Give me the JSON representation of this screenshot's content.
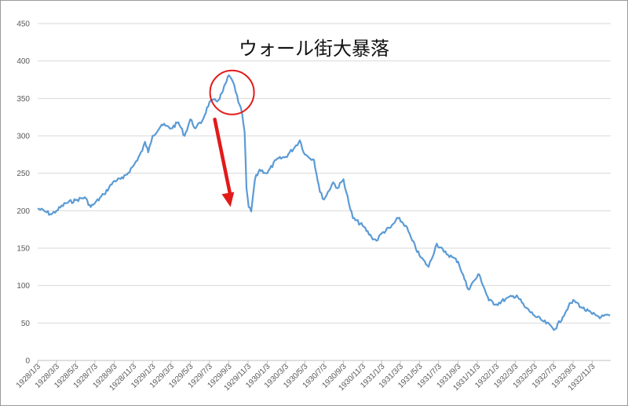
{
  "chart_data": {
    "type": "line",
    "title": "ウォール街大暴落",
    "xlabel": "",
    "ylabel": "",
    "ylim": [
      0,
      450
    ],
    "yticks": [
      0,
      50,
      100,
      150,
      200,
      250,
      300,
      350,
      400,
      450
    ],
    "xticks": [
      "1928/1/3",
      "1928/3/3",
      "1928/5/3",
      "1928/7/3",
      "1928/9/3",
      "1928/11/3",
      "1929/1/3",
      "1929/3/3",
      "1929/5/3",
      "1929/7/3",
      "1929/9/3",
      "1929/11/3",
      "1930/1/3",
      "1930/3/3",
      "1930/5/3",
      "1930/7/3",
      "1930/9/3",
      "1930/11/3",
      "1931/1/3",
      "1931/3/3",
      "1931/5/3",
      "1931/7/3",
      "1931/9/3",
      "1931/11/3",
      "1932/1/3",
      "1932/3/3",
      "1932/5/3",
      "1932/7/3",
      "1932/9/3",
      "1932/11/3"
    ],
    "grid": true,
    "line_color": "#5b9bd5",
    "annotation_color": "#e21a1a",
    "series": [
      {
        "x": [
          "1928/1/3",
          "1928/2/1",
          "1928/2/15",
          "1928/3/3",
          "1928/4/1",
          "1928/5/3",
          "1928/6/1",
          "1928/6/20",
          "1928/7/3",
          "1928/8/1",
          "1928/9/3",
          "1928/10/1",
          "1928/11/3",
          "1928/12/1",
          "1928/12/10",
          "1928/12/20",
          "1929/1/3",
          "1929/2/1",
          "1929/3/3",
          "1929/3/26",
          "1929/4/15",
          "1929/5/3",
          "1929/5/20",
          "1929/6/10",
          "1929/7/3",
          "1929/8/1",
          "1929/8/15",
          "1929/9/3",
          "1929/9/20",
          "1929/10/3",
          "1929/10/15",
          "1929/10/23",
          "1929/10/29",
          "1929/11/5",
          "1929/11/13",
          "1929/11/25",
          "1929/12/10",
          "1930/1/3",
          "1930/2/1",
          "1930/3/3",
          "1930/4/1",
          "1930/4/17",
          "1930/5/3",
          "1930/6/1",
          "1930/6/20",
          "1930/7/3",
          "1930/8/1",
          "1930/8/15",
          "1930/9/3",
          "1930/9/20",
          "1930/10/3",
          "1930/11/3",
          "1930/12/1",
          "1930/12/17",
          "1931/1/3",
          "1931/2/1",
          "1931/2/24",
          "1931/3/20",
          "1931/4/10",
          "1931/5/3",
          "1931/6/1",
          "1931/6/27",
          "1931/7/20",
          "1931/8/15",
          "1931/9/3",
          "1931/10/5",
          "1931/10/25",
          "1931/11/9",
          "1931/12/10",
          "1932/1/3",
          "1932/2/1",
          "1932/3/8",
          "1932/4/1",
          "1932/5/3",
          "1932/6/1",
          "1932/7/8",
          "1932/8/1",
          "1932/8/20",
          "1932/9/7",
          "1932/10/3",
          "1932/11/3",
          "1932/12/1",
          "1932/12/30"
        ],
        "y": [
          203,
          198,
          195,
          200,
          210,
          214,
          218,
          205,
          210,
          222,
          240,
          243,
          260,
          280,
          292,
          278,
          300,
          315,
          310,
          318,
          300,
          322,
          310,
          320,
          345,
          348,
          360,
          381,
          368,
          345,
          330,
          305,
          230,
          205,
          199,
          242,
          255,
          250,
          268,
          272,
          285,
          294,
          275,
          268,
          225,
          215,
          238,
          230,
          242,
          210,
          190,
          180,
          165,
          160,
          170,
          178,
          190,
          180,
          160,
          140,
          125,
          156,
          145,
          138,
          132,
          95,
          107,
          115,
          80,
          75,
          82,
          87,
          72,
          60,
          52,
          42,
          58,
          73,
          80,
          70,
          62,
          58,
          60
        ]
      }
    ]
  }
}
